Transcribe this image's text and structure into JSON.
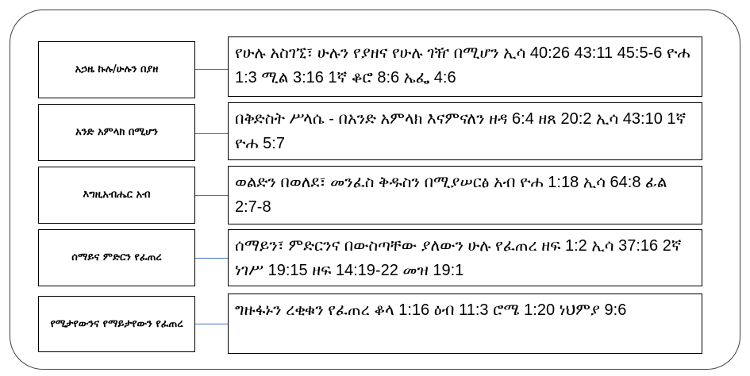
{
  "rows": [
    {
      "label": "አኃዜ ኩሉ/ሁሉን በያዘ",
      "text": "የሁሉ አስገኚ፣ ሁሉን የያዘና የሁሉ ገዥ በሚሆን ኢሳ 40:26 43:11 45:5-6 ዮሐ  1:3  ሚል 3:16 1ኛ ቆሮ 8:6 ኤፌ 4:6"
    },
    {
      "label": "አንድ አምላክ በሚሆን",
      "text": "በቅድስት ሥላሴ - በአንድ አምላክ እናምናለን ዘዳ 6:4 ዘጸ 20:2 ኢሳ 43:10 1ኛ ዮሐ 5:7"
    },
    {
      "label": "እግዚአብሔር አብ",
      "text": "ወልድን በወለደ፣ መንፈስ ቅዱስን በሚያሠርፅ አብ ዮሐ 1:18 ኢሳ 64:8 ፊል 2:7-8"
    },
    {
      "label": "ሰማይና ምድርን የፈጠረ",
      "text": "ሰማይን፣ ምድርንና በውስጣቸው ያለውን ሁሉ የፈጠረ ዘፍ 1:2 ኢሳ 37:16 2ኛ ነገሥ 19:15 ዘፍ 14:19-22 መዝ 19:1"
    },
    {
      "label": "የሚታየውንና የማይታየውን የፈጠረ",
      "text": "ግዙፋኑን ረቂቁን የፈጠረ ቆላ 1:16 ዕብ 11:3 ሮሜ 1:20 ነህምያ 9:6"
    }
  ],
  "colors": {
    "connector": "#4472c4",
    "frame": "#3a3f4a"
  }
}
